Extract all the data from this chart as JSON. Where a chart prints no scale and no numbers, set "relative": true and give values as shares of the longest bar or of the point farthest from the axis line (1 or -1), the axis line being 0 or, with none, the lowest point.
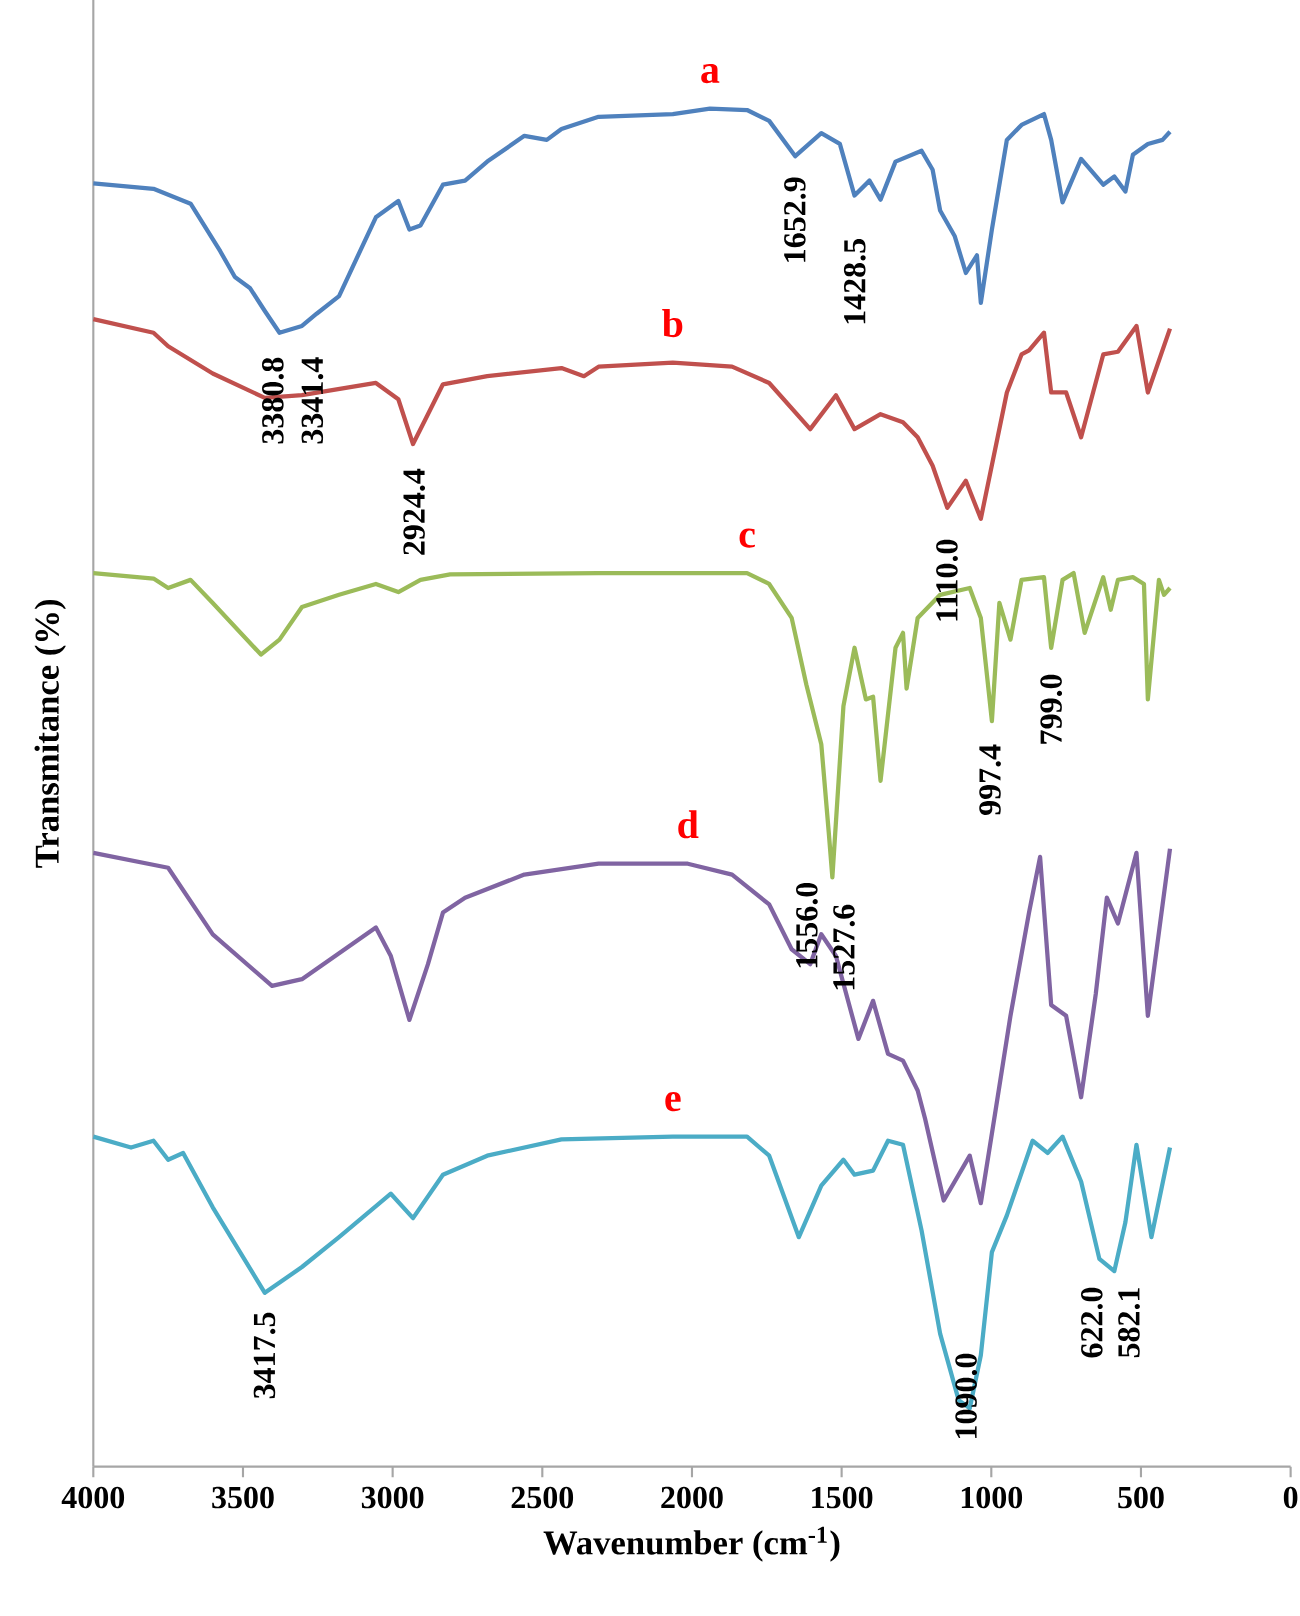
{
  "chart_data": {
    "type": "line",
    "relative": true,
    "xlabel": "Wavenumber (cm$^{-1}$)",
    "ylabel": "Transmitance (%)",
    "xlim": [
      4000,
      0
    ],
    "xticks": [
      4000,
      3500,
      3000,
      2500,
      2000,
      1500,
      1000,
      500,
      0
    ],
    "series": [
      {
        "name": "a",
        "color": "#4f81bd",
        "x": [
          4000,
          3799,
          3675,
          3576,
          3527,
          3477,
          3427,
          3378,
          3303,
          3254,
          3179,
          3056,
          2981,
          2944,
          2907,
          2832,
          2758,
          2684,
          2560,
          2485,
          2436,
          2312,
          2064,
          1940,
          1816,
          1742,
          1655,
          1568,
          1506,
          1457,
          1407,
          1370,
          1320,
          1233,
          1196,
          1171,
          1122,
          1085,
          1048,
          1035,
          998,
          948,
          899,
          824,
          800,
          762,
          700,
          626,
          589,
          552,
          527,
          477,
          428,
          403
        ],
        "values": [
          0.945,
          0.941,
          0.93,
          0.895,
          0.876,
          0.868,
          0.851,
          0.835,
          0.84,
          0.849,
          0.862,
          0.92,
          0.932,
          0.911,
          0.914,
          0.944,
          0.947,
          0.961,
          0.98,
          0.977,
          0.985,
          0.994,
          0.996,
          1,
          0.999,
          0.991,
          0.965,
          0.982,
          0.974,
          0.936,
          0.947,
          0.933,
          0.961,
          0.969,
          0.955,
          0.925,
          0.906,
          0.879,
          0.892,
          0.857,
          0.911,
          0.977,
          0.988,
          0.996,
          0.977,
          0.931,
          0.963,
          0.944,
          0.95,
          0.939,
          0.966,
          0.974,
          0.977,
          0.983
        ]
      },
      {
        "name": "b",
        "color": "#c0504d",
        "x": [
          4000,
          3799,
          3750,
          3601,
          3427,
          3303,
          3056,
          2981,
          2932,
          2882,
          2832,
          2684,
          2436,
          2361,
          2312,
          2064,
          1866,
          1742,
          1605,
          1519,
          1457,
          1370,
          1295,
          1246,
          1196,
          1147,
          1085,
          1035,
          948,
          899,
          874,
          824,
          800,
          750,
          700,
          626,
          577,
          515,
          477,
          403
        ],
        "values": [
          0.845,
          0.835,
          0.825,
          0.805,
          0.787,
          0.789,
          0.798,
          0.786,
          0.753,
          0.775,
          0.797,
          0.803,
          0.809,
          0.803,
          0.81,
          0.813,
          0.81,
          0.798,
          0.764,
          0.789,
          0.764,
          0.775,
          0.769,
          0.758,
          0.737,
          0.706,
          0.726,
          0.698,
          0.791,
          0.819,
          0.822,
          0.835,
          0.791,
          0.791,
          0.758,
          0.819,
          0.821,
          0.84,
          0.791,
          0.838
        ]
      },
      {
        "name": "c",
        "color": "#9bbb59",
        "x": [
          4000,
          3799,
          3750,
          3675,
          3601,
          3440,
          3378,
          3303,
          3179,
          3056,
          2981,
          2907,
          2808,
          2312,
          1816,
          1742,
          1667,
          1618,
          1568,
          1543,
          1531,
          1494,
          1457,
          1419,
          1395,
          1370,
          1320,
          1295,
          1283,
          1246,
          1171,
          1072,
          1035,
          998,
          973,
          936,
          899,
          824,
          800,
          762,
          725,
          688,
          626,
          601,
          577,
          527,
          490,
          477,
          440,
          423,
          403
        ],
        "values": [
          0.658,
          0.654,
          0.647,
          0.653,
          0.636,
          0.598,
          0.609,
          0.633,
          0.642,
          0.65,
          0.644,
          0.653,
          0.657,
          0.658,
          0.658,
          0.65,
          0.625,
          0.576,
          0.532,
          0.467,
          0.434,
          0.56,
          0.603,
          0.565,
          0.567,
          0.505,
          0.603,
          0.614,
          0.573,
          0.625,
          0.642,
          0.647,
          0.625,
          0.549,
          0.636,
          0.609,
          0.653,
          0.655,
          0.603,
          0.653,
          0.658,
          0.614,
          0.655,
          0.631,
          0.653,
          0.655,
          0.65,
          0.565,
          0.653,
          0.642,
          0.647
        ]
      },
      {
        "name": "d",
        "color": "#8064a2",
        "x": [
          4000,
          3750,
          3601,
          3403,
          3303,
          3056,
          3006,
          2944,
          2882,
          2832,
          2758,
          2560,
          2312,
          2014,
          1866,
          1742,
          1667,
          1605,
          1568,
          1519,
          1444,
          1395,
          1345,
          1295,
          1246,
          1221,
          1159,
          1072,
          1035,
          986,
          936,
          874,
          837,
          800,
          750,
          700,
          651,
          614,
          577,
          515,
          477,
          403
        ],
        "values": [
          0.452,
          0.441,
          0.392,
          0.354,
          0.359,
          0.397,
          0.376,
          0.329,
          0.37,
          0.408,
          0.419,
          0.436,
          0.444,
          0.444,
          0.436,
          0.414,
          0.381,
          0.37,
          0.392,
          0.376,
          0.315,
          0.343,
          0.304,
          0.299,
          0.277,
          0.256,
          0.196,
          0.229,
          0.194,
          0.262,
          0.332,
          0.408,
          0.449,
          0.34,
          0.332,
          0.272,
          0.348,
          0.419,
          0.4,
          0.452,
          0.332,
          0.455
        ]
      },
      {
        "name": "e",
        "color": "#4bacc6",
        "x": [
          4000,
          3874,
          3799,
          3750,
          3700,
          3601,
          3427,
          3303,
          3179,
          3006,
          2932,
          2832,
          2684,
          2436,
          2064,
          1816,
          1742,
          1643,
          1568,
          1494,
          1457,
          1395,
          1345,
          1295,
          1233,
          1171,
          1109,
          1072,
          1035,
          998,
          948,
          862,
          812,
          762,
          700,
          639,
          589,
          552,
          515,
          465,
          403
        ],
        "values": [
          0.243,
          0.235,
          0.24,
          0.226,
          0.231,
          0.191,
          0.128,
          0.147,
          0.169,
          0.201,
          0.183,
          0.215,
          0.229,
          0.241,
          0.243,
          0.243,
          0.229,
          0.169,
          0.207,
          0.226,
          0.215,
          0.218,
          0.24,
          0.237,
          0.174,
          0.098,
          0.049,
          0.043,
          0.082,
          0.158,
          0.185,
          0.24,
          0.231,
          0.243,
          0.21,
          0.153,
          0.144,
          0.18,
          0.237,
          0.169,
          0.235
        ]
      }
    ],
    "annotations": [
      "1652.9",
      "1428.5",
      "3380.8",
      "3341.4",
      "2924.4",
      "1110.0",
      "997.4",
      "799.0",
      "1556.0",
      "1527.6",
      "3417.5",
      "1090.0",
      "622.0",
      "582.1"
    ]
  }
}
